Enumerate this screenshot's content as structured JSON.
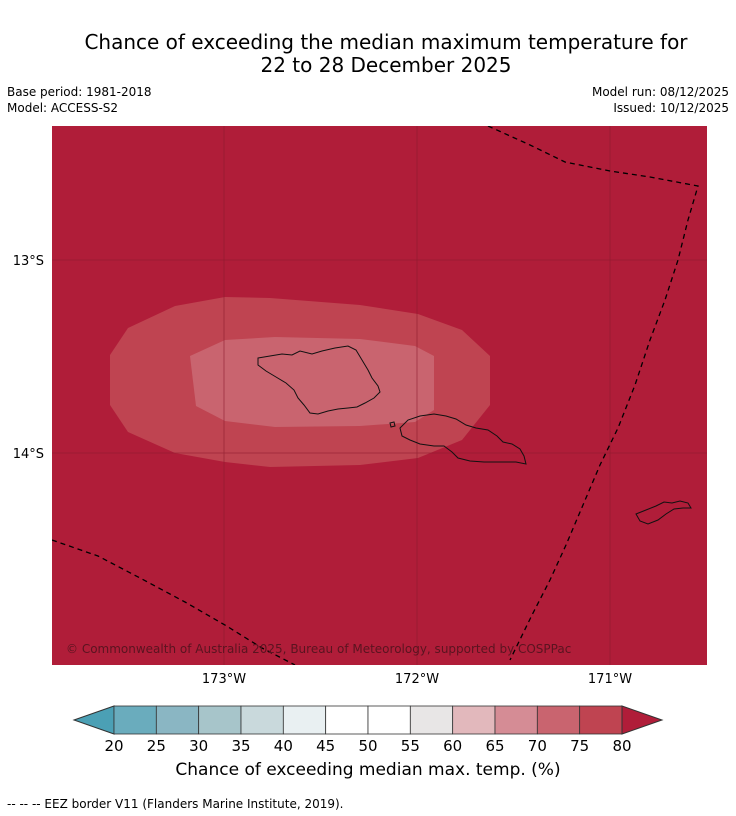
{
  "title_line1": "Chance of exceeding the median maximum temperature for",
  "title_line2": "22 to 28 December 2025",
  "meta": {
    "base_period": "Base period: 1981-2018",
    "model": "Model: ACCESS-S2",
    "model_run": "Model run: 08/12/2025",
    "issued": "Issued: 10/12/2025"
  },
  "map": {
    "lat_labels": [
      "13°S",
      "14°S"
    ],
    "lon_labels": [
      "173°W",
      "172°W",
      "171°W"
    ],
    "copyright": "© Commonwealth of Australia 2025, Bureau of Meteorology, supported by COSPPac"
  },
  "colorbar": {
    "ticks": [
      "20",
      "25",
      "30",
      "35",
      "40",
      "45",
      "50",
      "55",
      "60",
      "65",
      "70",
      "75",
      "80"
    ],
    "colors": [
      "#6aacbd",
      "#8ab6c3",
      "#a7c5ca",
      "#c9d9dc",
      "#e9f0f2",
      "#ffffff",
      "#ffffff",
      "#e8e6e6",
      "#e2b8bc",
      "#d58c95",
      "#c9646f",
      "#bf4451"
    ],
    "under_color": "#4ba0b5",
    "over_color": "#b01d39",
    "label": "Chance of exceeding median max. temp. (%)"
  },
  "footnote": "--  --  -- EEZ border V11 (Flanders Marine Institute, 2019).",
  "colors": {
    "above_80": "#b01d39",
    "band_75_80": "#bf4451",
    "band_70_75": "#c9646f"
  }
}
